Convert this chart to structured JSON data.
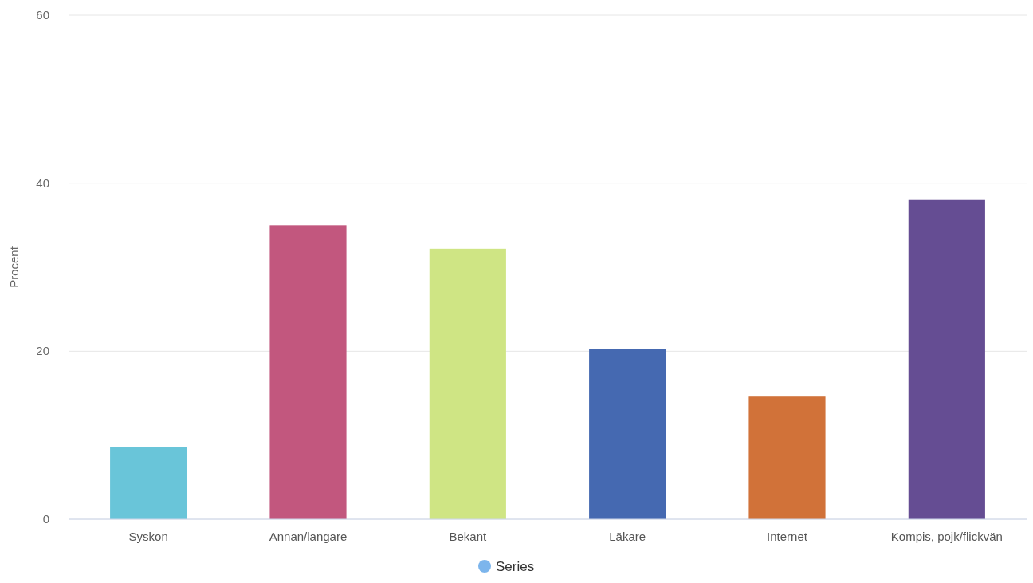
{
  "chart_data": {
    "type": "bar",
    "ylabel": "Procent",
    "categories": [
      "Syskon",
      "Annan/langare",
      "Bekant",
      "Läkare",
      "Internet",
      "Kompis, pojk/flickvän"
    ],
    "series": [
      {
        "name": "Series",
        "color": "#7cb5ec",
        "colors": [
          "#69c5d9",
          "#c2577e",
          "#cfe584",
          "#4569b1",
          "#d17239",
          "#654d93"
        ],
        "values": [
          8.6,
          35.0,
          32.2,
          20.3,
          14.6,
          38.0
        ]
      }
    ],
    "ylim": [
      0,
      60
    ],
    "yticks": [
      0,
      20,
      40,
      60
    ],
    "grid": "y",
    "legend": "bottom"
  }
}
